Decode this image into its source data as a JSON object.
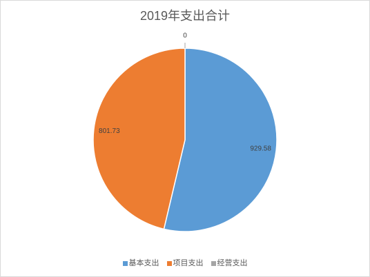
{
  "chart_data": {
    "type": "pie",
    "title": "2019年支出合计",
    "categories": [
      "基本支出",
      "项目支出",
      "经营支出"
    ],
    "values": [
      929.58,
      801.73,
      0
    ],
    "colors": [
      "#5B9BD5",
      "#ED7D31",
      "#A5A5A5"
    ],
    "show_data_labels": true,
    "legend_position": "bottom"
  }
}
